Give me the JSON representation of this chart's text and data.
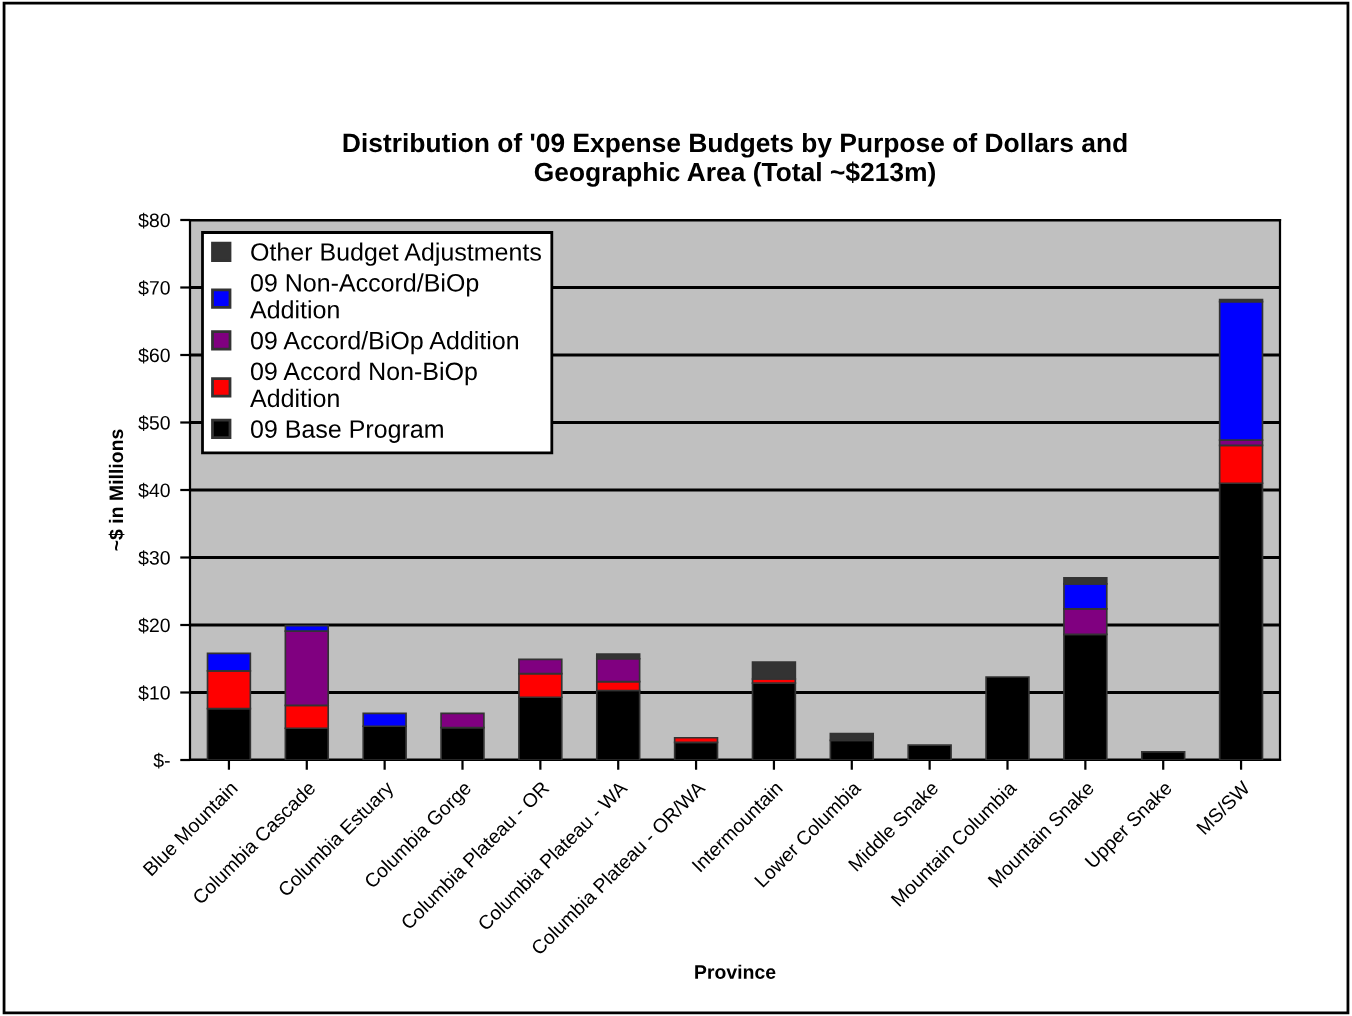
{
  "chart_data": {
    "type": "bar",
    "title": "Distribution of '09 Expense Budgets by Purpose of Dollars and\nGeographic Area (Total ~$213m)",
    "xlabel": "Province",
    "ylabel": "~$ in Millions",
    "categories": [
      "Blue Mountain",
      "Columbia Cascade",
      "Columbia Estuary",
      "Columbia Gorge",
      "Columbia Plateau - OR",
      "Columbia Plateau - WA",
      "Columbia Plateau - OR/WA",
      "Intermountain",
      "Lower Columbia",
      "Middle Snake",
      "Mountain Columbia",
      "Mountain Snake",
      "Upper Snake",
      "MS/SW"
    ],
    "stacked": true,
    "series": [
      {
        "name": "09 Base Program",
        "color": "#000000",
        "values": [
          7.6,
          4.7,
          5.0,
          4.8,
          9.3,
          10.3,
          2.6,
          11.4,
          2.9,
          2.2,
          12.3,
          18.6,
          1.2,
          41.0
        ]
      },
      {
        "name": "09 Accord Non-BiOp\nAddition",
        "color": "#ff0000",
        "values": [
          5.6,
          3.4,
          null,
          null,
          3.5,
          1.3,
          0.7,
          0.6,
          null,
          null,
          null,
          null,
          null,
          5.6
        ]
      },
      {
        "name": "09 Accord/BiOp Addition",
        "color": "#800080",
        "values": [
          null,
          11.0,
          null,
          2.1,
          2.1,
          3.4,
          null,
          null,
          null,
          null,
          null,
          3.8,
          null,
          0.8
        ]
      },
      {
        "name": "09 Non-Accord/BiOp\nAddition",
        "color": "#0000ff",
        "values": [
          2.6,
          0.8,
          1.9,
          null,
          null,
          null,
          null,
          null,
          null,
          null,
          null,
          3.7,
          null,
          20.5
        ]
      },
      {
        "name": "Other Budget Adjustments",
        "color": "#333333",
        "values": [
          null,
          null,
          null,
          null,
          null,
          0.7,
          null,
          2.5,
          1.0,
          null,
          null,
          0.9,
          null,
          0.3
        ]
      }
    ],
    "ylim": [
      0,
      80
    ],
    "yticks": [
      {
        "value": 0,
        "label": "$-"
      },
      {
        "value": 10,
        "label": "$10"
      },
      {
        "value": 20,
        "label": "$20"
      },
      {
        "value": 30,
        "label": "$30"
      },
      {
        "value": 40,
        "label": "$40"
      },
      {
        "value": 50,
        "label": "$50"
      },
      {
        "value": 60,
        "label": "$60"
      },
      {
        "value": 70,
        "label": "$70"
      },
      {
        "value": 80,
        "label": "$80"
      }
    ],
    "grid": "y",
    "legend": "top left"
  }
}
